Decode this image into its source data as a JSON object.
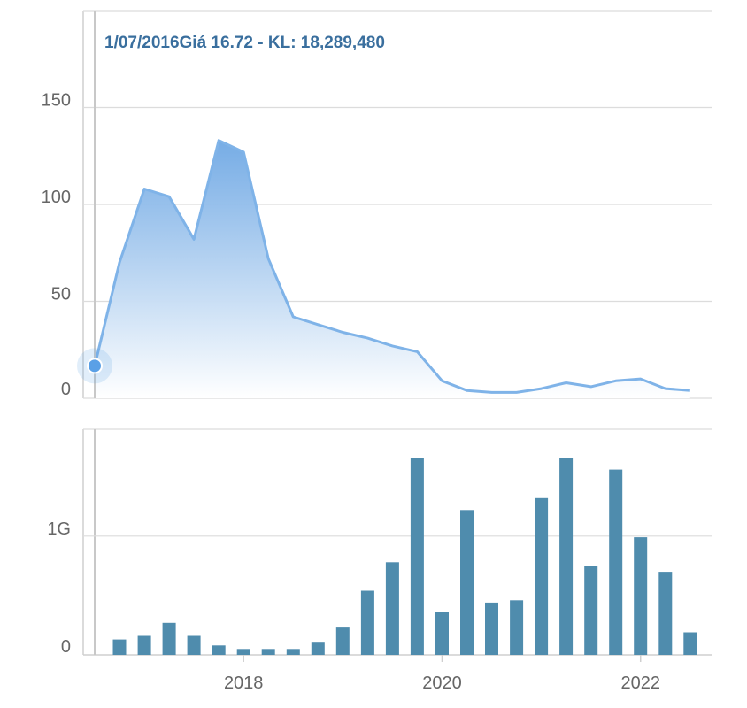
{
  "tooltip": {
    "date": "1/07/2016",
    "price_label": "Giá 16.72",
    "separator": " - ",
    "volume_label": "KL: 18,289,480"
  },
  "colors": {
    "price_line": "#7fb3e8",
    "price_fill_top": "#6fa8e4",
    "price_fill_bottom": "#ffffff",
    "volume_bar": "#4f8cad",
    "marker": "#5aa0e6",
    "tooltip_text": "#3a6f9e"
  },
  "chart_data": [
    {
      "type": "area",
      "title": "",
      "ylabel": "",
      "ylim": [
        0,
        200
      ],
      "y_ticks": [
        0,
        50,
        100,
        150
      ],
      "y_tick_labels": [
        "0",
        "50",
        "100",
        "150"
      ],
      "x_range": [
        2016.5,
        2022.6
      ],
      "x": [
        2016.5,
        2016.75,
        2017.0,
        2017.25,
        2017.5,
        2017.75,
        2018.0,
        2018.25,
        2018.5,
        2018.75,
        2019.0,
        2019.25,
        2019.5,
        2019.75,
        2020.0,
        2020.25,
        2020.5,
        2020.75,
        2021.0,
        2021.25,
        2021.5,
        2021.75,
        2022.0,
        2022.25,
        2022.5
      ],
      "values": [
        16.72,
        70,
        108,
        104,
        82,
        133,
        127,
        72,
        42,
        38,
        34,
        31,
        27,
        24,
        9,
        4,
        3,
        3,
        5,
        8,
        6,
        9,
        10,
        5,
        4
      ],
      "highlight_index": 0
    },
    {
      "type": "bar",
      "title": "",
      "ylabel": "",
      "ylim": [
        0,
        1.9
      ],
      "y_ticks": [
        0,
        1
      ],
      "y_tick_labels": [
        "0",
        "1G"
      ],
      "x_tick_values": [
        2018,
        2020,
        2022
      ],
      "x_tick_labels": [
        "2018",
        "2020",
        "2022"
      ],
      "x": [
        2016.75,
        2017.0,
        2017.25,
        2017.5,
        2017.75,
        2018.0,
        2018.25,
        2018.5,
        2018.75,
        2019.0,
        2019.25,
        2019.5,
        2019.75,
        2020.0,
        2020.25,
        2020.5,
        2020.75,
        2021.0,
        2021.25,
        2021.5,
        2021.75,
        2022.0,
        2022.25,
        2022.5
      ],
      "values": [
        0.13,
        0.16,
        0.27,
        0.16,
        0.08,
        0.05,
        0.05,
        0.05,
        0.11,
        0.23,
        0.54,
        0.78,
        1.66,
        0.36,
        1.22,
        0.44,
        0.46,
        1.32,
        1.66,
        0.75,
        1.56,
        0.99,
        0.7,
        0.19
      ]
    }
  ]
}
